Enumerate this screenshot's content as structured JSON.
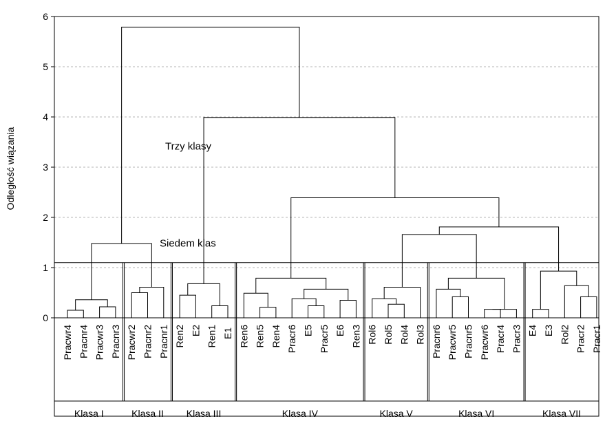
{
  "chart_data": {
    "type": "dendrogram",
    "ylabel": "Odległość wiązania",
    "ylim": [
      0,
      6
    ],
    "y_ticks": [
      "0",
      "1",
      "2",
      "3",
      "4",
      "5",
      "6"
    ],
    "grid": true,
    "leaves": [
      "Pracwr4",
      "Pracnr4",
      "Pracwr3",
      "Pracnr3",
      "Pracwr2",
      "Pracnr2",
      "Pracnr1",
      "Ren2",
      "E2",
      "Ren1",
      "E1",
      "Ren6",
      "Ren5",
      "Ren4",
      "Pracr6",
      "E5",
      "Pracr5",
      "E6",
      "Ren3",
      "Rol6",
      "Rol5",
      "Rol4",
      "Rol3",
      "Pracnr6",
      "Pracwr5",
      "Pracnr5",
      "Pracwr6",
      "Pracr4",
      "Pracr3",
      "E4",
      "E3",
      "Rol2",
      "Pracr2",
      "Pracr1"
    ],
    "merges": [
      {
        "a": "L0",
        "b": "L1",
        "h": 0.15
      },
      {
        "a": "L2",
        "b": "L3",
        "h": 0.22
      },
      {
        "a": "n0",
        "b": "n1",
        "h": 0.36
      },
      {
        "a": "L4",
        "b": "L5",
        "h": 0.5
      },
      {
        "a": "n3",
        "b": "L6",
        "h": 0.61
      },
      {
        "a": "n2",
        "b": "n4",
        "h": 1.48
      },
      {
        "a": "L7",
        "b": "L8",
        "h": 0.45
      },
      {
        "a": "L9",
        "b": "L10",
        "h": 0.24
      },
      {
        "a": "n6",
        "b": "n7",
        "h": 0.68
      },
      {
        "a": "L12",
        "b": "L13",
        "h": 0.21
      },
      {
        "a": "L11",
        "b": "n9",
        "h": 0.49
      },
      {
        "a": "L15",
        "b": "L16",
        "h": 0.24
      },
      {
        "a": "L14",
        "b": "n11",
        "h": 0.38
      },
      {
        "a": "L17",
        "b": "L18",
        "h": 0.35
      },
      {
        "a": "n12",
        "b": "n13",
        "h": 0.57
      },
      {
        "a": "n10",
        "b": "n14",
        "h": 0.79
      },
      {
        "a": "L20",
        "b": "L21",
        "h": 0.27
      },
      {
        "a": "L19",
        "b": "n16",
        "h": 0.38
      },
      {
        "a": "n17",
        "b": "L22",
        "h": 0.61
      },
      {
        "a": "L24",
        "b": "L25",
        "h": 0.42
      },
      {
        "a": "L23",
        "b": "n19",
        "h": 0.57
      },
      {
        "a": "L26",
        "b": "L27",
        "h": 0.17
      },
      {
        "a": "n21",
        "b": "L28",
        "h": 0.17
      },
      {
        "a": "n20",
        "b": "n22",
        "h": 0.79
      },
      {
        "a": "n18",
        "b": "n23",
        "h": 1.66
      },
      {
        "a": "L29",
        "b": "L30",
        "h": 0.17
      },
      {
        "a": "L32",
        "b": "L33",
        "h": 0.42
      },
      {
        "a": "L31",
        "b": "n26",
        "h": 0.64
      },
      {
        "a": "n25",
        "b": "n27",
        "h": 0.93
      },
      {
        "a": "n24",
        "b": "n28",
        "h": 1.81
      },
      {
        "a": "n15",
        "b": "n29",
        "h": 2.39
      },
      {
        "a": "n8",
        "b": "n30",
        "h": 3.99
      },
      {
        "a": "n5",
        "b": "n31",
        "h": 5.79
      }
    ],
    "cut_line": 1.1,
    "annotations": [
      {
        "text": "Trzy klasy",
        "y": 3.35
      },
      {
        "text": "Siedem klas",
        "y": 1.42
      }
    ],
    "classes": [
      {
        "label": "Klasa I",
        "first": 0,
        "last": 3
      },
      {
        "label": "Klasa II",
        "first": 4,
        "last": 6
      },
      {
        "label": "Klasa III",
        "first": 7,
        "last": 10
      },
      {
        "label": "Klasa IV",
        "first": 11,
        "last": 18
      },
      {
        "label": "Klasa V",
        "first": 19,
        "last": 22
      },
      {
        "label": "Klasa VI",
        "first": 23,
        "last": 28
      },
      {
        "label": "Klasa VII",
        "first": 29,
        "last": 33
      }
    ]
  }
}
